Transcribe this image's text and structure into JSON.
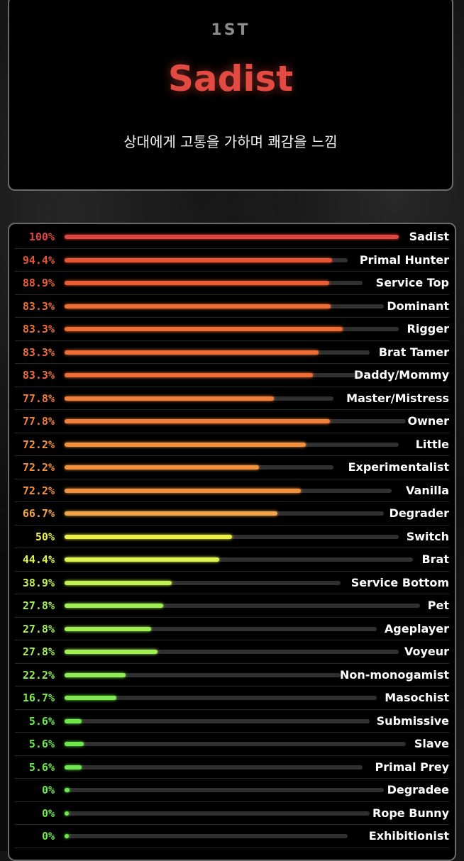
{
  "header": {
    "rank": "1ST",
    "type_name": "Sadist",
    "description": "상대에게 고통을 가하며 쾌감을 느낌",
    "type_color": "#e34a42"
  },
  "results": [
    {
      "name": "Sadist",
      "percent_label": "100%",
      "value": 100,
      "color": "#e0453e"
    },
    {
      "name": "Primal Hunter",
      "percent_label": "94.4%",
      "value": 94.4,
      "color": "#e55535"
    },
    {
      "name": "Service Top",
      "percent_label": "88.9%",
      "value": 88.9,
      "color": "#e85d34"
    },
    {
      "name": "Dominant",
      "percent_label": "83.3%",
      "value": 83.3,
      "color": "#ec6e36"
    },
    {
      "name": "Rigger",
      "percent_label": "83.3%",
      "value": 83.3,
      "color": "#ec6e36"
    },
    {
      "name": "Brat Tamer",
      "percent_label": "83.3%",
      "value": 83.3,
      "color": "#ec6e36"
    },
    {
      "name": "Daddy/Mommy",
      "percent_label": "83.3%",
      "value": 83.3,
      "color": "#ec6e36"
    },
    {
      "name": "Master/Mistress",
      "percent_label": "77.8%",
      "value": 77.8,
      "color": "#ef7f3a"
    },
    {
      "name": "Owner",
      "percent_label": "77.8%",
      "value": 77.8,
      "color": "#ef7f3a"
    },
    {
      "name": "Little",
      "percent_label": "72.2%",
      "value": 72.2,
      "color": "#f1913e"
    },
    {
      "name": "Experimentalist",
      "percent_label": "72.2%",
      "value": 72.2,
      "color": "#f1913e"
    },
    {
      "name": "Vanilla",
      "percent_label": "72.2%",
      "value": 72.2,
      "color": "#f1913e"
    },
    {
      "name": "Degrader",
      "percent_label": "66.7%",
      "value": 66.7,
      "color": "#f2a548"
    },
    {
      "name": "Switch",
      "percent_label": "50%",
      "value": 50,
      "color": "#ecf04a"
    },
    {
      "name": "Brat",
      "percent_label": "44.4%",
      "value": 44.4,
      "color": "#def250"
    },
    {
      "name": "Service Bottom",
      "percent_label": "38.9%",
      "value": 38.9,
      "color": "#c3f050"
    },
    {
      "name": "Pet",
      "percent_label": "27.8%",
      "value": 27.8,
      "color": "#a2ee55"
    },
    {
      "name": "Ageplayer",
      "percent_label": "27.8%",
      "value": 27.8,
      "color": "#a2ee55"
    },
    {
      "name": "Voyeur",
      "percent_label": "27.8%",
      "value": 27.8,
      "color": "#a2ee55"
    },
    {
      "name": "Non-monogamist",
      "percent_label": "22.2%",
      "value": 22.2,
      "color": "#8eec55"
    },
    {
      "name": "Masochist",
      "percent_label": "16.7%",
      "value": 16.7,
      "color": "#7eea52"
    },
    {
      "name": "Submissive",
      "percent_label": "5.6%",
      "value": 5.6,
      "color": "#6ee84e"
    },
    {
      "name": "Slave",
      "percent_label": "5.6%",
      "value": 5.6,
      "color": "#6ee84e"
    },
    {
      "name": "Primal Prey",
      "percent_label": "5.6%",
      "value": 5.6,
      "color": "#6ee84e"
    },
    {
      "name": "Degradee",
      "percent_label": "0%",
      "value": 0,
      "color": "#6ee84e"
    },
    {
      "name": "Rope Bunny",
      "percent_label": "0%",
      "value": 0,
      "color": "#6ee84e"
    },
    {
      "name": "Exhibitionist",
      "percent_label": "0%",
      "value": 0,
      "color": "#6ee84e"
    }
  ]
}
